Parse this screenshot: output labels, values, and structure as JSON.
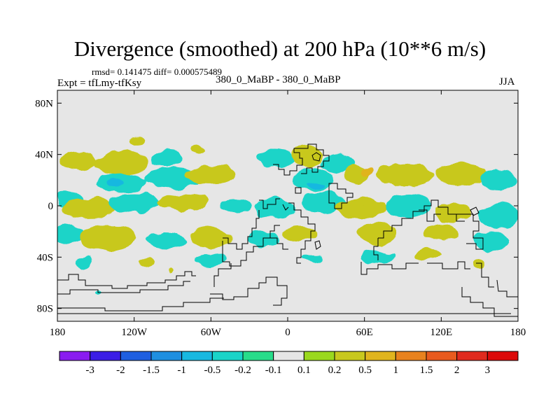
{
  "chart_data": {
    "type": "heatmap",
    "title": "Divergence (smoothed) at 200 hPa (10**6 m/s)",
    "stats_label": "rmsd= 0.141475 diff= 0.000575489",
    "left_label": "Expt = tfLmy-tfKsy",
    "center_label": "380_0_MaBP - 380_0_MaBP",
    "right_label": "JJA",
    "xlim": [
      -180,
      180
    ],
    "ylim": [
      -90,
      90
    ],
    "x_ticks": [
      -180,
      -120,
      -60,
      0,
      60,
      120,
      180
    ],
    "x_tick_labels": [
      "180",
      "120W",
      "60W",
      "0",
      "60E",
      "120E",
      "180"
    ],
    "y_ticks": [
      80,
      40,
      0,
      -40,
      -80
    ],
    "y_tick_labels": [
      "80N",
      "40N",
      "0",
      "40S",
      "80S"
    ],
    "colorbar": {
      "levels": [
        "-3",
        "-2",
        "-1.5",
        "-1",
        "-0.5",
        "-0.2",
        "-0.1",
        "0.1",
        "0.2",
        "0.5",
        "1",
        "1.5",
        "2",
        "3"
      ],
      "colors": [
        "#8a1cf0",
        "#3b1ee6",
        "#1f5fe0",
        "#1f8fe0",
        "#18b8e0",
        "#1ad4c8",
        "#28dc8a",
        "#e6e6e6",
        "#9ad81e",
        "#c8c81e",
        "#e0b41e",
        "#e8821e",
        "#e85a1e",
        "#e02a1e",
        "#dc0a0a"
      ]
    },
    "field_patches": [
      {
        "lon": -164,
        "lat": 35,
        "rlon": 14,
        "rlat": 7,
        "value": 0.25
      },
      {
        "lon": -130,
        "lat": 33,
        "rlon": 22,
        "rlat": 9,
        "value": 0.25
      },
      {
        "lon": -128,
        "lat": 32,
        "rlon": 9,
        "rlat": 4,
        "value": 0.5
      },
      {
        "lon": -94,
        "lat": 37,
        "rlon": 12,
        "rlat": 6,
        "value": -0.3
      },
      {
        "lon": -118,
        "lat": 50,
        "rlon": 6,
        "rlat": 3,
        "value": 0.25
      },
      {
        "lon": -72,
        "lat": 43,
        "rlon": 6,
        "rlat": 3,
        "value": 0.25
      },
      {
        "lon": -130,
        "lat": 18,
        "rlon": 20,
        "rlat": 7,
        "value": -0.3
      },
      {
        "lon": -135,
        "lat": 18,
        "rlon": 7,
        "rlat": 3,
        "value": -0.6
      },
      {
        "lon": -90,
        "lat": 22,
        "rlon": 22,
        "rlat": 8,
        "value": -0.3
      },
      {
        "lon": -60,
        "lat": 24,
        "rlon": 20,
        "rlat": 7,
        "value": 0.25
      },
      {
        "lon": -50,
        "lat": 25,
        "rlon": 8,
        "rlat": 3,
        "value": 0.5
      },
      {
        "lon": -10,
        "lat": 37,
        "rlon": 14,
        "rlat": 8,
        "value": -0.3
      },
      {
        "lon": 15,
        "lat": 38,
        "rlon": 12,
        "rlat": 8,
        "value": 0.25
      },
      {
        "lon": 40,
        "lat": 33,
        "rlon": 14,
        "rlat": 7,
        "value": -0.3
      },
      {
        "lon": 20,
        "lat": 20,
        "rlon": 16,
        "rlat": 9,
        "value": -0.3
      },
      {
        "lon": 22,
        "lat": 16,
        "rlon": 7,
        "rlat": 3,
        "value": -0.7
      },
      {
        "lon": 55,
        "lat": 24,
        "rlon": 10,
        "rlat": 8,
        "value": 0.25
      },
      {
        "lon": 62,
        "lat": 27,
        "rlon": 5,
        "rlat": 4,
        "value": 0.6
      },
      {
        "lon": 92,
        "lat": 24,
        "rlon": 22,
        "rlat": 9,
        "value": 0.25
      },
      {
        "lon": 96,
        "lat": 22,
        "rlon": 7,
        "rlat": 3,
        "value": 0.5
      },
      {
        "lon": 135,
        "lat": 25,
        "rlon": 20,
        "rlat": 9,
        "value": 0.25
      },
      {
        "lon": 165,
        "lat": 20,
        "rlon": 14,
        "rlat": 8,
        "value": -0.3
      },
      {
        "lon": -170,
        "lat": 5,
        "rlon": 10,
        "rlat": 6,
        "value": -0.3
      },
      {
        "lon": -155,
        "lat": -2,
        "rlon": 20,
        "rlat": 8,
        "value": 0.25
      },
      {
        "lon": -120,
        "lat": 2,
        "rlon": 20,
        "rlat": 8,
        "value": -0.3
      },
      {
        "lon": -82,
        "lat": 3,
        "rlon": 20,
        "rlat": 7,
        "value": 0.25
      },
      {
        "lon": -85,
        "lat": 2,
        "rlon": 8,
        "rlat": 3,
        "value": 0.5
      },
      {
        "lon": -40,
        "lat": 0,
        "rlon": 12,
        "rlat": 6,
        "value": -0.3
      },
      {
        "lon": -10,
        "lat": -2,
        "rlon": 16,
        "rlat": 8,
        "value": -0.3
      },
      {
        "lon": 28,
        "lat": 2,
        "rlon": 18,
        "rlat": 8,
        "value": -0.3
      },
      {
        "lon": 58,
        "lat": -2,
        "rlon": 20,
        "rlat": 8,
        "value": 0.25
      },
      {
        "lon": 60,
        "lat": -3,
        "rlon": 9,
        "rlat": 3,
        "value": 0.5
      },
      {
        "lon": 95,
        "lat": 0,
        "rlon": 18,
        "rlat": 9,
        "value": -0.3
      },
      {
        "lon": 130,
        "lat": -5,
        "rlon": 14,
        "rlat": 7,
        "value": 0.25
      },
      {
        "lon": 165,
        "lat": -8,
        "rlon": 16,
        "rlat": 10,
        "value": -0.3
      },
      {
        "lon": -170,
        "lat": -22,
        "rlon": 12,
        "rlat": 8,
        "value": -0.3
      },
      {
        "lon": -140,
        "lat": -25,
        "rlon": 22,
        "rlat": 10,
        "value": 0.25
      },
      {
        "lon": -135,
        "lat": -27,
        "rlon": 10,
        "rlat": 4,
        "value": 0.5
      },
      {
        "lon": -95,
        "lat": -27,
        "rlon": 16,
        "rlat": 6,
        "value": -0.3
      },
      {
        "lon": -60,
        "lat": -25,
        "rlon": 16,
        "rlat": 8,
        "value": 0.25
      },
      {
        "lon": -60,
        "lat": -27,
        "rlon": 6,
        "rlat": 3,
        "value": 0.5
      },
      {
        "lon": -20,
        "lat": -26,
        "rlon": 12,
        "rlat": 6,
        "value": -0.3
      },
      {
        "lon": 10,
        "lat": -22,
        "rlon": 14,
        "rlat": 6,
        "value": 0.25
      },
      {
        "lon": 70,
        "lat": -22,
        "rlon": 16,
        "rlat": 8,
        "value": 0.25
      },
      {
        "lon": 75,
        "lat": -24,
        "rlon": 6,
        "rlat": 3,
        "value": 0.5
      },
      {
        "lon": 120,
        "lat": -20,
        "rlon": 14,
        "rlat": 7,
        "value": 0.25
      },
      {
        "lon": 160,
        "lat": -28,
        "rlon": 14,
        "rlat": 8,
        "value": -0.3
      },
      {
        "lon": -160,
        "lat": -44,
        "rlon": 6,
        "rlat": 5,
        "value": -0.3
      },
      {
        "lon": -110,
        "lat": -44,
        "rlon": 6,
        "rlat": 4,
        "value": 0.25
      },
      {
        "lon": -60,
        "lat": -42,
        "rlon": 12,
        "rlat": 5,
        "value": -0.3
      },
      {
        "lon": 20,
        "lat": -40,
        "rlon": 7,
        "rlat": 3,
        "value": -0.3
      },
      {
        "lon": 70,
        "lat": -40,
        "rlon": 14,
        "rlat": 5,
        "value": -0.3
      },
      {
        "lon": 110,
        "lat": -38,
        "rlon": 10,
        "rlat": 4,
        "value": 0.25
      },
      {
        "lon": -90,
        "lat": -50,
        "rlon": 2,
        "rlat": 2,
        "value": 0.25
      },
      {
        "lon": 150,
        "lat": -46,
        "rlon": 5,
        "rlat": 4,
        "value": 0.25
      },
      {
        "lon": -148,
        "lat": -68,
        "rlon": 3,
        "rlat": 1.5,
        "value": -0.3
      }
    ]
  }
}
